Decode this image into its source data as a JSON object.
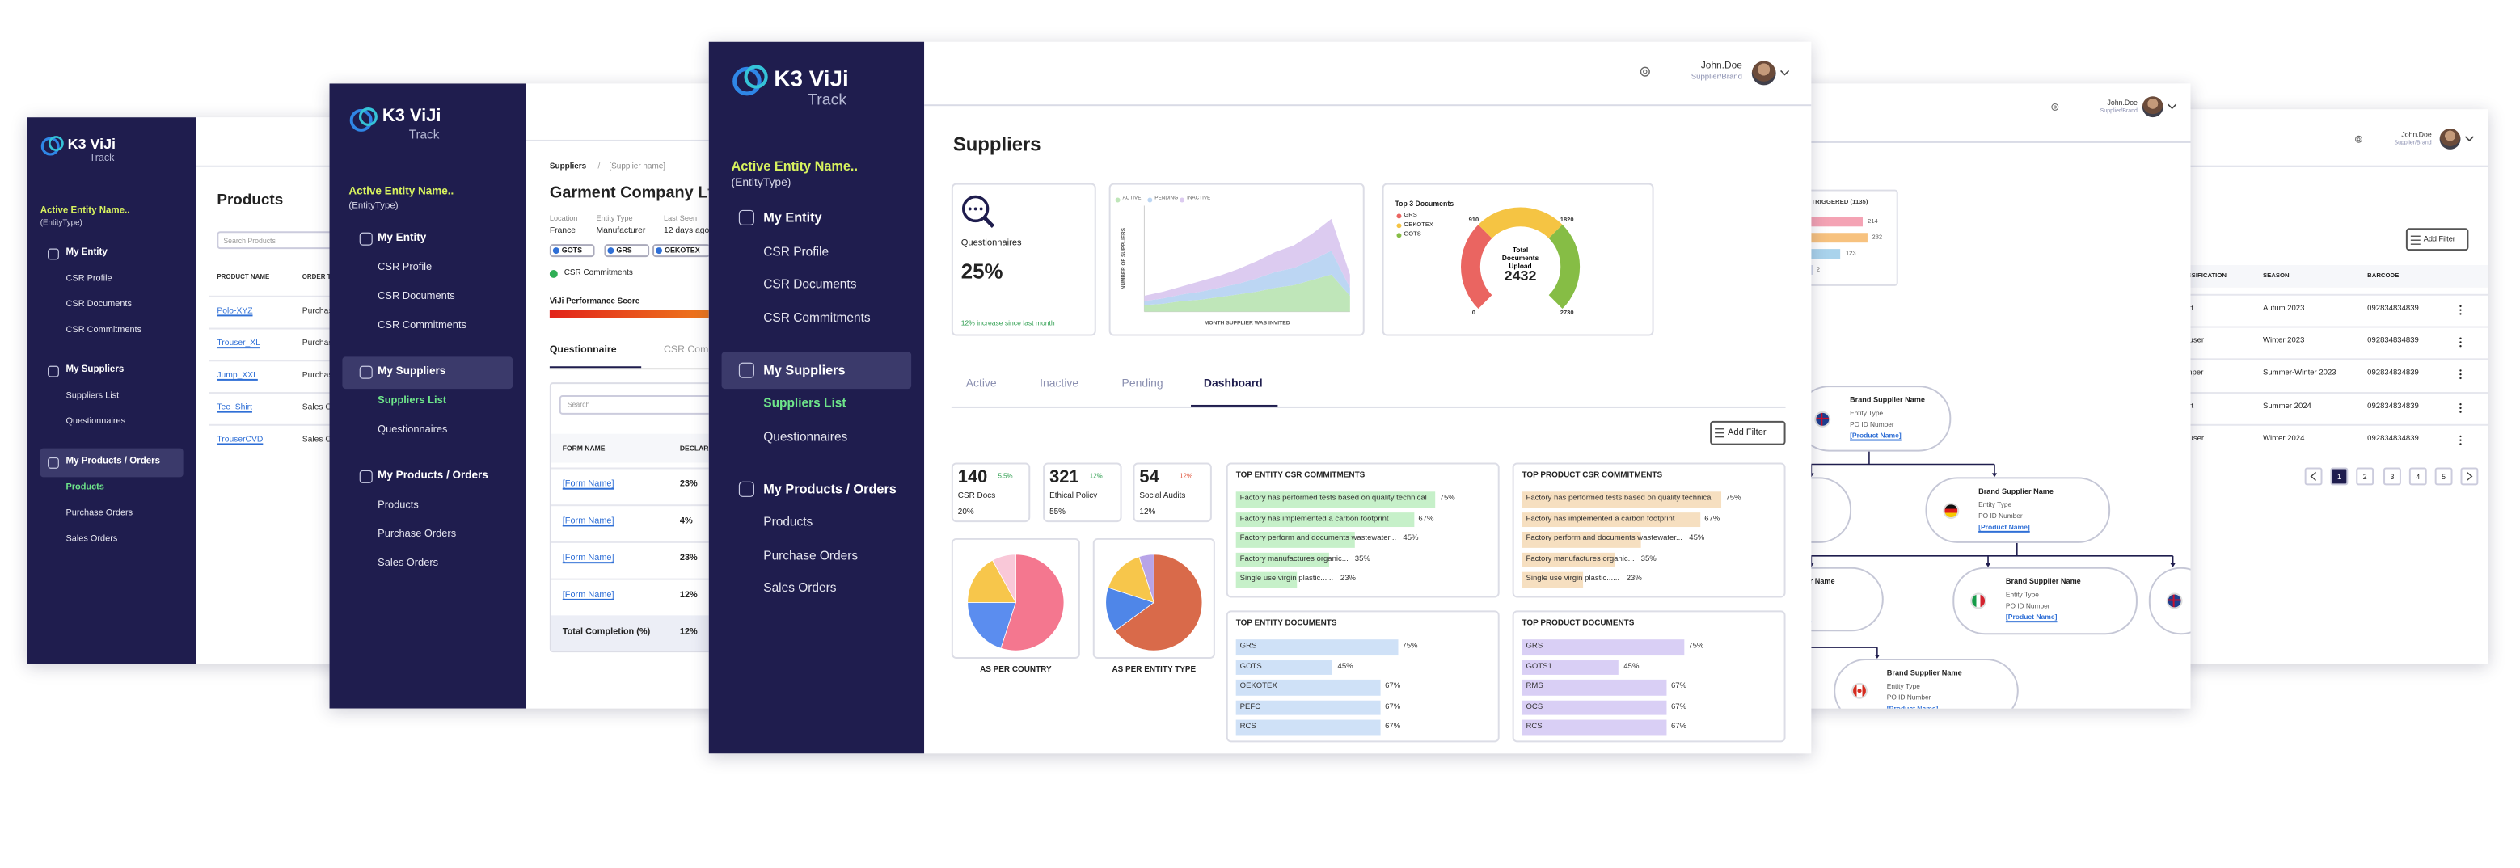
{
  "app": {
    "logo": "K3 ViJi",
    "logo_sub": "Track",
    "user": "John.Doe",
    "role": "Supplier/Brand"
  },
  "sidebar": {
    "entity": "Active Entity Name..",
    "entity_type": "(EntityType)",
    "sections": [
      {
        "title": "My Entity",
        "items": [
          "CSR Profile",
          "CSR Documents",
          "CSR Commitments"
        ]
      },
      {
        "title": "My Suppliers",
        "items": [
          "Suppliers List",
          "Questionnaires"
        ]
      },
      {
        "title": "My Products / Orders",
        "items": [
          "Products",
          "Purchase Orders",
          "Sales Orders"
        ]
      }
    ]
  },
  "products": {
    "title": "Products",
    "search": "Search Products",
    "columns": [
      "PRODUCT NAME",
      "ORDER TYPE"
    ],
    "rows": [
      [
        "Polo-XYZ",
        "Purchase Order"
      ],
      [
        "Trouser_XL",
        "Purchase Order"
      ],
      [
        "Jump_XXL",
        "Purchase Order"
      ],
      [
        "Tee_Shirt",
        "Sales Order"
      ],
      [
        "TrouserCVD",
        "Sales Order"
      ]
    ]
  },
  "supplier": {
    "breadcrumb": [
      "Suppliers",
      "/",
      "[Supplier name]"
    ],
    "name": "Garment Company Ltd.",
    "meta": [
      {
        "label": "Location",
        "value": "France"
      },
      {
        "label": "Entity Type",
        "value": "Manufacturer"
      },
      {
        "label": "Last Seen",
        "value": "12 days ago"
      }
    ],
    "tags": [
      "GOTS",
      "GRS",
      "OEKOTEX"
    ],
    "commitments": "CSR Commitments",
    "score_label": "ViJi Performance Score",
    "tabs": [
      "Questionnaire",
      "CSR Commitments"
    ],
    "search": "Search",
    "columns": [
      "FORM NAME",
      "DECLARATION"
    ],
    "rows": [
      [
        "[Form Name]",
        "23%"
      ],
      [
        "[Form Name]",
        "4%"
      ],
      [
        "[Form Name]",
        "23%"
      ],
      [
        "[Form Name]",
        "12%"
      ]
    ],
    "total": [
      "Total Completion (%)",
      "12%"
    ]
  },
  "dashboard": {
    "title": "Suppliers",
    "questionnaires": {
      "label": "Questionnaires",
      "value": "25%",
      "trend": "12% increase since last month"
    },
    "trend_chart": {
      "x_label": "MONTH SUPPLIER WAS INVITED",
      "y_label": "NUMBER OF SUPPLIERS",
      "ylim": [
        0,
        80
      ],
      "series": [
        {
          "name": "ACTIVE",
          "color": "#bfe6b9",
          "values": [
            5,
            6,
            8,
            9,
            11,
            13,
            15,
            18,
            20,
            24,
            28,
            12
          ]
        },
        {
          "name": "PENDING",
          "color": "#bcd6f3",
          "values": [
            3,
            4,
            5,
            6,
            7,
            8,
            10,
            12,
            13,
            15,
            18,
            6
          ]
        },
        {
          "name": "INACTIVE",
          "color": "#dccbf0",
          "values": [
            4,
            5,
            6,
            8,
            9,
            11,
            13,
            15,
            17,
            20,
            24,
            10
          ]
        }
      ]
    },
    "gauge": {
      "title": "Top 3 Documents",
      "range": [
        0,
        2730
      ],
      "ticks": [
        0,
        910,
        1820,
        2730
      ],
      "segments": [
        {
          "name": "GRS",
          "color": "#ea6561",
          "value": 910
        },
        {
          "name": "OEKOTEX",
          "color": "#f5c443",
          "value": 910
        },
        {
          "name": "GOTS",
          "color": "#86bd45",
          "value": 910
        }
      ],
      "total_label": "Total Documents Upload",
      "total": "2432"
    },
    "tabs": [
      "Active",
      "Inactive",
      "Pending",
      "Dashboard"
    ],
    "filter": "Add Filter",
    "stats": [
      {
        "value": "140",
        "change": "5.5%",
        "color": "#2e9e4f",
        "label": "CSR Docs",
        "sub": "20%"
      },
      {
        "value": "321",
        "change": "12%",
        "color": "#2e9e4f",
        "label": "Ethical Policy",
        "sub": "55%"
      },
      {
        "value": "54",
        "change": "12%",
        "color": "#e0533a",
        "label": "Social Audits",
        "sub": "12%"
      }
    ],
    "pies": [
      {
        "title": "AS PER COUNTRY",
        "values": [
          55,
          20,
          17,
          8
        ],
        "colors": [
          "#f4778f",
          "#5b8def",
          "#f7c64b",
          "#f9c8d8"
        ]
      },
      {
        "title": "AS PER ENTITY TYPE",
        "values": [
          65,
          15,
          15,
          5
        ],
        "colors": [
          "#d96a4a",
          "#4f86e8",
          "#f7c64b",
          "#b8a4e8"
        ]
      }
    ],
    "lists": [
      {
        "title": "TOP ENTITY CSR COMMITMENTS",
        "color": "#c6f0c9",
        "items": [
          {
            "label": "Factory has performed tests based on quality technical",
            "value": 75,
            "value_label": "75%"
          },
          {
            "label": "Factory has implemented a carbon footprint",
            "value": 67,
            "value_label": "67%"
          },
          {
            "label": "Factory perform and documents wastewater...",
            "value": 45,
            "value_label": "45%"
          },
          {
            "label": "Factory manufactures organic...",
            "value": 35,
            "value_label": "35%"
          },
          {
            "label": "Single use virgin plastic......",
            "value": 23,
            "value_label": "23%"
          }
        ]
      },
      {
        "title": "TOP PRODUCT CSR COMMITMENTS",
        "color": "#f6dfc0",
        "items": [
          {
            "label": "Factory has performed tests based on quality technical",
            "value": 75,
            "value_label": "75%"
          },
          {
            "label": "Factory has implemented a carbon footprint",
            "value": 67,
            "value_label": "67%"
          },
          {
            "label": "Factory perform and documents wastewater...",
            "value": 45,
            "value_label": "45%"
          },
          {
            "label": "Factory manufactures organic...",
            "value": 35,
            "value_label": "35%"
          },
          {
            "label": "Single use virgin plastic......",
            "value": 23,
            "value_label": "23%"
          }
        ]
      },
      {
        "title": "TOP ENTITY DOCUMENTS",
        "color": "#cfe1f7",
        "items": [
          {
            "label": "GRS",
            "value": 75,
            "value_label": "75%"
          },
          {
            "label": "GOTS",
            "value": 45,
            "value_label": "45%"
          },
          {
            "label": "OEKOTEX",
            "value": 67,
            "value_label": "67%"
          },
          {
            "label": "PEFC",
            "value": 67,
            "value_label": "67%"
          },
          {
            "label": "RCS",
            "value": 67,
            "value_label": "67%"
          }
        ]
      },
      {
        "title": "TOP PRODUCT DOCUMENTS",
        "color": "#d9cff5",
        "items": [
          {
            "label": "GRS",
            "value": 75,
            "value_label": "75%"
          },
          {
            "label": "GOTS1",
            "value": 45,
            "value_label": "45%"
          },
          {
            "label": "RMS",
            "value": 67,
            "value_label": "67%"
          },
          {
            "label": "OCS",
            "value": 67,
            "value_label": "67%"
          },
          {
            "label": "RCS",
            "value": 67,
            "value_label": "67%"
          }
        ]
      }
    ]
  },
  "network": {
    "triggered": {
      "title": "TRIGGERED (1135)",
      "values": [
        214,
        232,
        123,
        2
      ],
      "colors": [
        "#f4a3b4",
        "#f7c27f",
        "#a9d3ec",
        "#cfd4e6"
      ]
    },
    "node": {
      "name": "Brand Supplier Name",
      "type": "Entity Type",
      "po": "PO ID Number",
      "product": "[Product Name]"
    }
  },
  "catalog": {
    "filter": "Add Filter",
    "columns": [
      "CLASSIFICATION",
      "SEASON",
      "BARCODE"
    ],
    "rows": [
      [
        "Shirt",
        "Autum 2023",
        "092834834839"
      ],
      [
        "Trouser",
        "Winter 2023",
        "092834834839"
      ],
      [
        "Jumper",
        "Summer-Winter 2023",
        "092834834839"
      ],
      [
        "Shirt",
        "Summer 2024",
        "092834834839"
      ],
      [
        "Trouser",
        "Winter 2024",
        "092834834839"
      ]
    ],
    "pages": [
      "1",
      "2",
      "3",
      "4",
      "5"
    ]
  }
}
